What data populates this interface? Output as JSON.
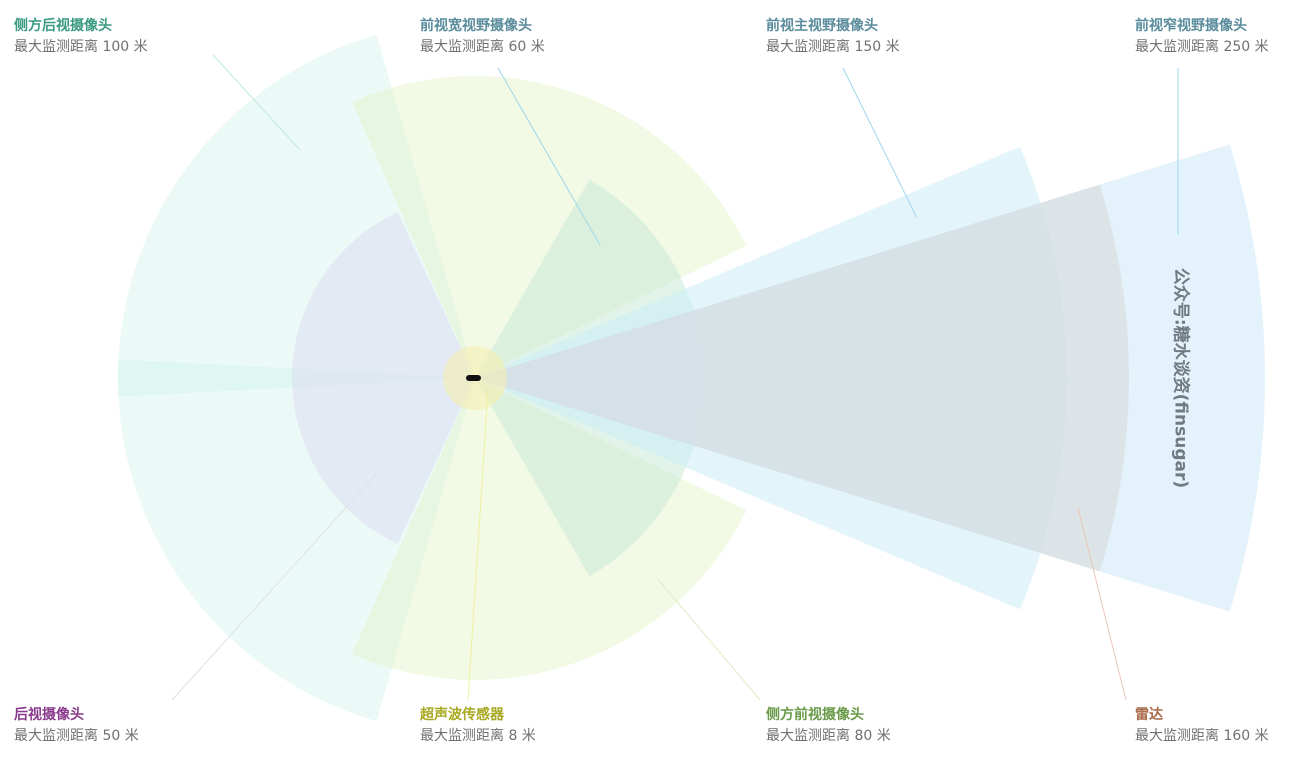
{
  "sensors": [
    {
      "name": "侧方后视摄像头",
      "range": "最大监测距离 100 米",
      "color": "#3a9a82"
    },
    {
      "name": "前视宽视野摄像头",
      "range": "最大监测距离 60 米",
      "color": "#5a8c9c"
    },
    {
      "name": "前视主视野摄像头",
      "range": "最大监测距离 150 米",
      "color": "#5a8c9c"
    },
    {
      "name": "前视窄视野摄像头",
      "range": "最大监测距离 250 米",
      "color": "#5a8c9c"
    },
    {
      "name": "后视摄像头",
      "range": "最大监测距离 50 米",
      "color": "#8a3a8c"
    },
    {
      "name": "超声波传感器",
      "range": "最大监测距离 8 米",
      "color": "#a8a820"
    },
    {
      "name": "侧方前视摄像头",
      "range": "最大监测距离 80 米",
      "color": "#6a9a4a"
    },
    {
      "name": "雷达",
      "range": "最大监测距离 160 米",
      "color": "#a86a4a"
    }
  ],
  "watermark": "公众号:糖水谈资(finsugar)"
}
